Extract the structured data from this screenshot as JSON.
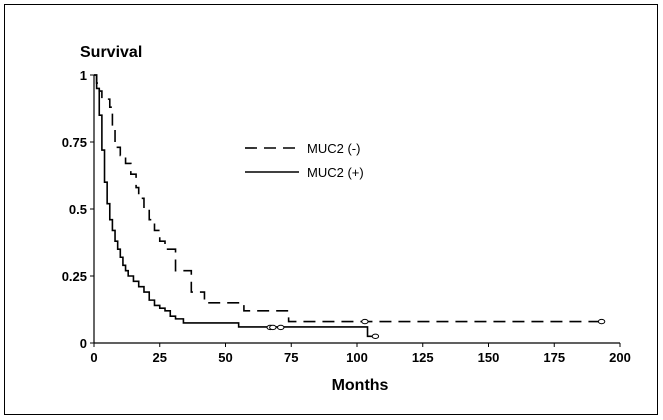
{
  "chart_data": {
    "type": "line",
    "title": "",
    "ylabel": "Survival",
    "xlabel": "Months",
    "xlim": [
      0,
      200
    ],
    "ylim": [
      0,
      1
    ],
    "xticks": [
      "0",
      "25",
      "50",
      "75",
      "100",
      "125",
      "150",
      "175",
      "200"
    ],
    "yticks": [
      "0",
      "0.25",
      "0.5",
      "0.75",
      "1"
    ],
    "legend_position": "center",
    "series": [
      {
        "name": "MUC2 (-)",
        "style": "dashed",
        "steps": [
          [
            0,
            1
          ],
          [
            1,
            0.97
          ],
          [
            2,
            0.94
          ],
          [
            3,
            0.91
          ],
          [
            6,
            0.88
          ],
          [
            7,
            0.8
          ],
          [
            8,
            0.73
          ],
          [
            10,
            0.7
          ],
          [
            12,
            0.67
          ],
          [
            14,
            0.63
          ],
          [
            16,
            0.58
          ],
          [
            17,
            0.54
          ],
          [
            19,
            0.5
          ],
          [
            21,
            0.46
          ],
          [
            23,
            0.42
          ],
          [
            25,
            0.38
          ],
          [
            27,
            0.35
          ],
          [
            31,
            0.27
          ],
          [
            37,
            0.19
          ],
          [
            42,
            0.15
          ],
          [
            56,
            0.15
          ],
          [
            57,
            0.12
          ],
          [
            73,
            0.12
          ],
          [
            74,
            0.08
          ],
          [
            103,
            0.08
          ],
          [
            104,
            0.08
          ],
          [
            193,
            0.08
          ]
        ],
        "censored": [
          [
            103,
            0.08
          ],
          [
            193,
            0.08
          ]
        ]
      },
      {
        "name": "MUC2 (+)",
        "style": "solid",
        "steps": [
          [
            0,
            1
          ],
          [
            1,
            0.95
          ],
          [
            2,
            0.85
          ],
          [
            3,
            0.72
          ],
          [
            4,
            0.6
          ],
          [
            5,
            0.52
          ],
          [
            6,
            0.46
          ],
          [
            7,
            0.42
          ],
          [
            8,
            0.38
          ],
          [
            9,
            0.35
          ],
          [
            10,
            0.32
          ],
          [
            11,
            0.29
          ],
          [
            12,
            0.27
          ],
          [
            13,
            0.25
          ],
          [
            15,
            0.23
          ],
          [
            17,
            0.21
          ],
          [
            19,
            0.19
          ],
          [
            21,
            0.16
          ],
          [
            23,
            0.14
          ],
          [
            25,
            0.13
          ],
          [
            27,
            0.12
          ],
          [
            29,
            0.1
          ],
          [
            31,
            0.09
          ],
          [
            34,
            0.075
          ],
          [
            53,
            0.075
          ],
          [
            55,
            0.06
          ],
          [
            102,
            0.06
          ],
          [
            104,
            0.025
          ],
          [
            108,
            0.025
          ]
        ],
        "censored": [
          [
            67,
            0.058
          ],
          [
            68,
            0.058
          ],
          [
            71,
            0.058
          ],
          [
            107,
            0.025
          ]
        ]
      }
    ]
  }
}
